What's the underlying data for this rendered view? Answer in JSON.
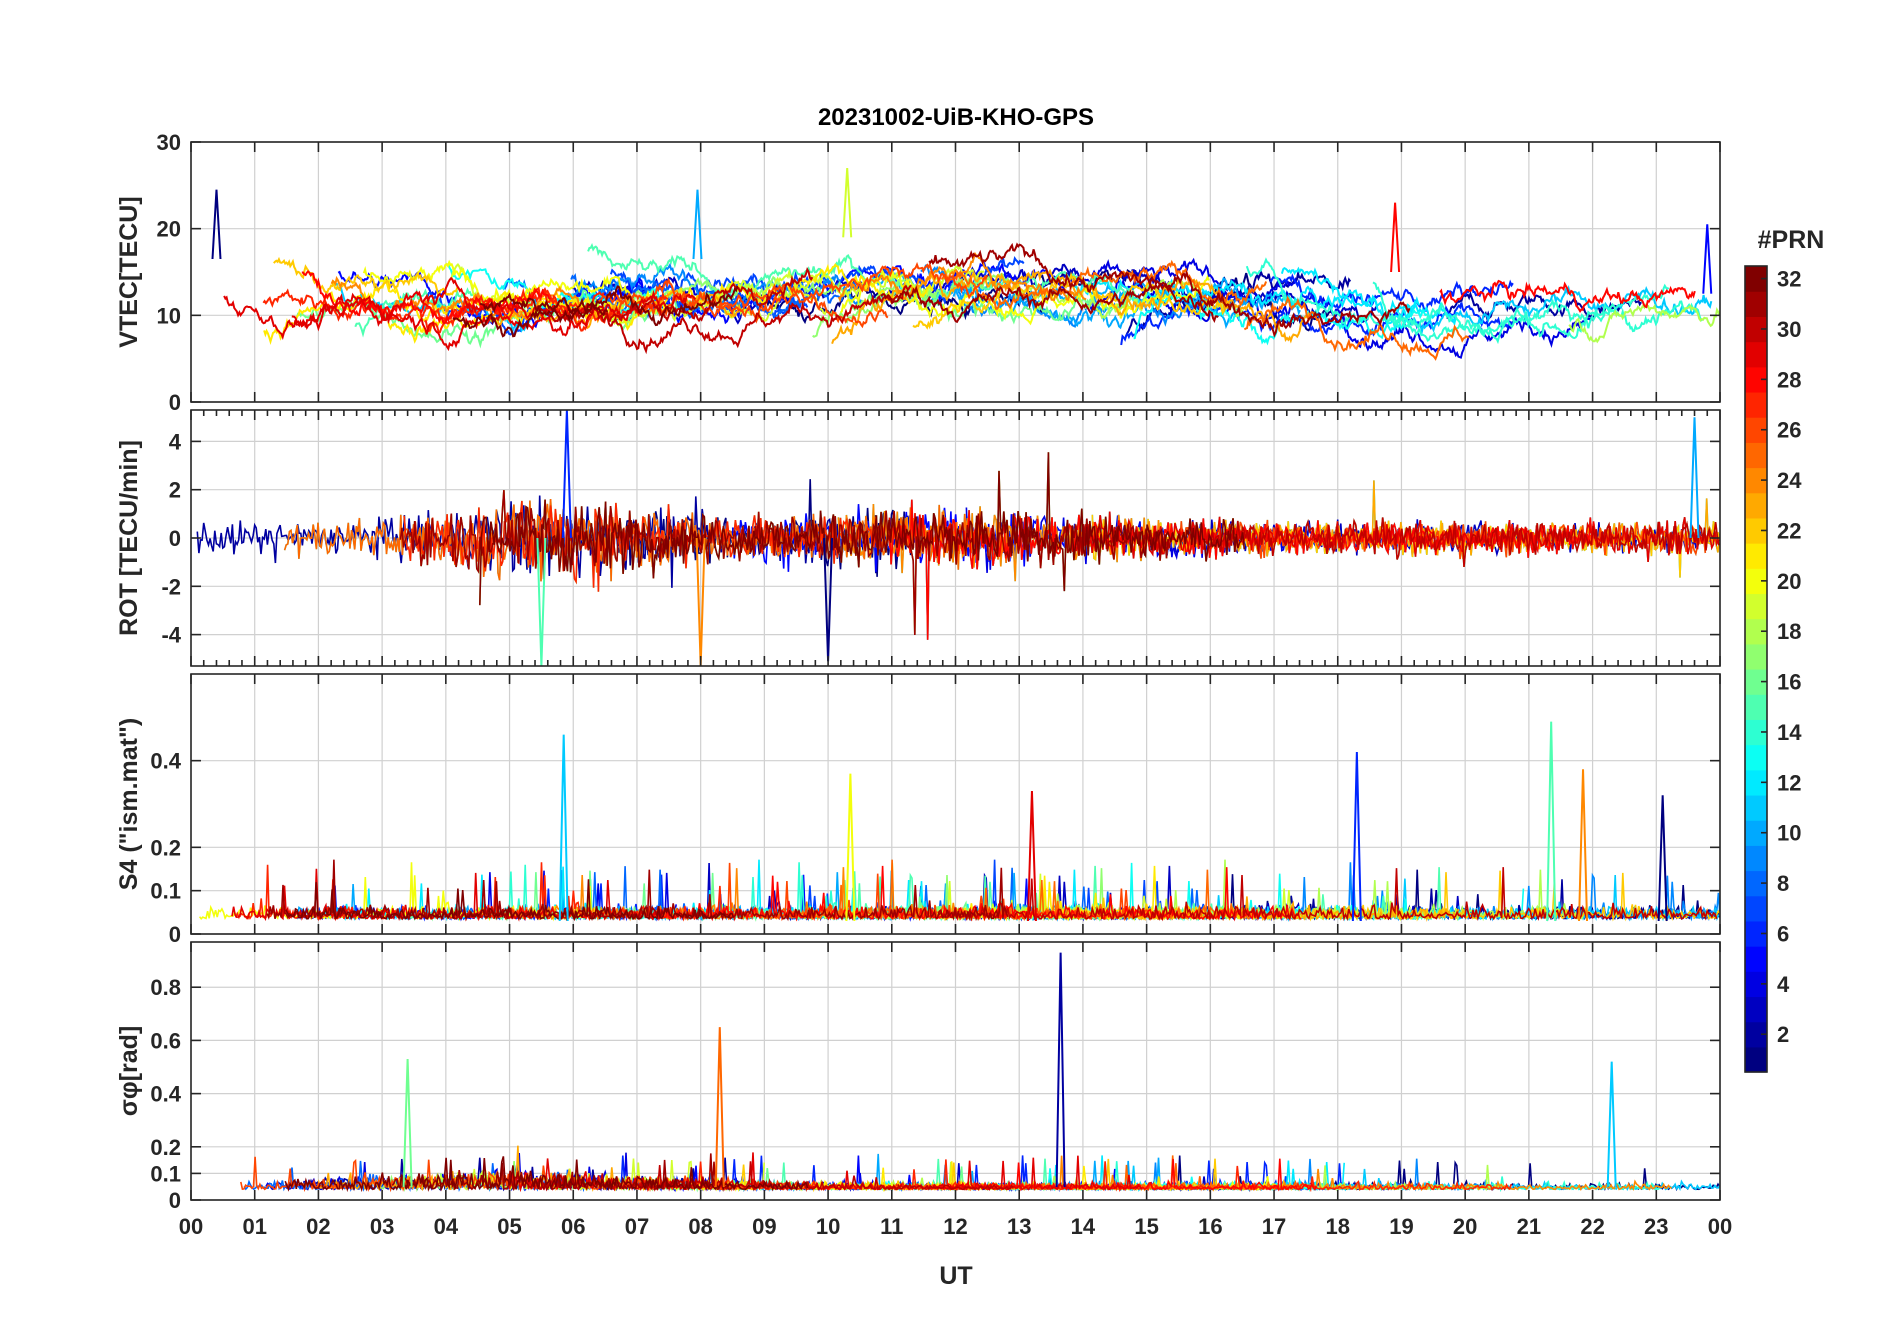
{
  "chart_data": {
    "type": "line",
    "title": "20231002-UiB-KHO-GPS",
    "xlabel": "UT",
    "x_tick_labels": [
      "00",
      "01",
      "02",
      "03",
      "04",
      "05",
      "06",
      "07",
      "08",
      "09",
      "10",
      "11",
      "12",
      "13",
      "14",
      "15",
      "16",
      "17",
      "18",
      "19",
      "20",
      "21",
      "22",
      "23",
      "00"
    ],
    "xlim": [
      0,
      24
    ],
    "colorbar": {
      "label": "#PRN",
      "range": [
        1,
        32
      ],
      "tick_labels": [
        "2",
        "4",
        "6",
        "8",
        "10",
        "12",
        "14",
        "16",
        "18",
        "20",
        "22",
        "24",
        "26",
        "28",
        "30",
        "32"
      ],
      "colormap": "jet"
    },
    "panels": [
      {
        "id": "vtec",
        "ylabel": "VTEC[TECU]",
        "ylim": [
          0,
          30
        ],
        "yticks": [
          0,
          10,
          20,
          30
        ],
        "y_tick_labels": [
          "0",
          "10",
          "20",
          "30"
        ],
        "peaks": [
          {
            "x": 0.4,
            "y": 24.5
          },
          {
            "x": 7.95,
            "y": 24.5
          },
          {
            "x": 10.3,
            "y": 27
          },
          {
            "x": 18.9,
            "y": 23
          },
          {
            "x": 23.8,
            "y": 20.5
          }
        ]
      },
      {
        "id": "rot",
        "ylabel": "ROT [TECU/min]",
        "ylim": [
          -5.3,
          5.3
        ],
        "yticks": [
          -4,
          -2,
          0,
          2,
          4
        ],
        "y_tick_labels": [
          "-4",
          "-2",
          "0",
          "2",
          "4"
        ],
        "peaks": [
          {
            "x": 5.9,
            "y": 5.3
          },
          {
            "x": 5.5,
            "y": -5.3
          },
          {
            "x": 8.0,
            "y": -5.3
          },
          {
            "x": 10.0,
            "y": -5.1
          },
          {
            "x": 23.6,
            "y": 5.0
          }
        ]
      },
      {
        "id": "s4",
        "ylabel": "S4 (\"ism.mat\")",
        "ylim": [
          0,
          0.6
        ],
        "yticks": [
          0,
          0.1,
          0.2,
          0.4
        ],
        "y_tick_labels": [
          "0",
          "0.1",
          "0.2",
          "0.4"
        ],
        "peaks": [
          {
            "x": 5.85,
            "y": 0.46
          },
          {
            "x": 10.35,
            "y": 0.37
          },
          {
            "x": 13.2,
            "y": 0.33
          },
          {
            "x": 18.3,
            "y": 0.42
          },
          {
            "x": 21.35,
            "y": 0.49
          },
          {
            "x": 21.85,
            "y": 0.38
          },
          {
            "x": 23.1,
            "y": 0.32
          }
        ]
      },
      {
        "id": "sigma",
        "ylabel": "σφ[rad]",
        "ylim": [
          0,
          0.97
        ],
        "yticks": [
          0,
          0.1,
          0.2,
          0.4,
          0.6,
          0.8
        ],
        "y_tick_labels": [
          "0",
          "0.1",
          "0.2",
          "0.4",
          "0.6",
          "0.8"
        ],
        "peaks": [
          {
            "x": 3.4,
            "y": 0.53
          },
          {
            "x": 8.3,
            "y": 0.65
          },
          {
            "x": 13.65,
            "y": 0.93
          },
          {
            "x": 22.3,
            "y": 0.52
          }
        ]
      }
    ]
  }
}
